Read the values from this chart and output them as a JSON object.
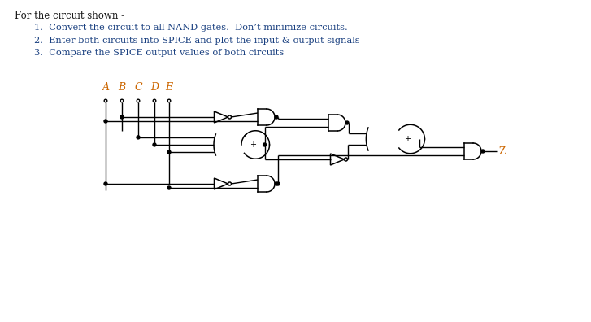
{
  "title_text": "For the circuit shown -",
  "items": [
    "Convert the circuit to all NAND gates.  Don’t minimize circuits.",
    "Enter both circuits into SPICE and plot the input & output signals",
    "Compare the SPICE output values of both circuits"
  ],
  "input_labels": [
    "A",
    "B",
    "C",
    "D",
    "E"
  ],
  "output_label": "Z",
  "bg_color": "#ffffff",
  "text_color": "#000000",
  "title_color": "#1a1a1a",
  "item_color": "#1a4080",
  "gate_color": "#000000",
  "line_color": "#000000",
  "label_color": "#cc6600",
  "title_fontsize": 8.5,
  "item_fontsize": 8.2
}
